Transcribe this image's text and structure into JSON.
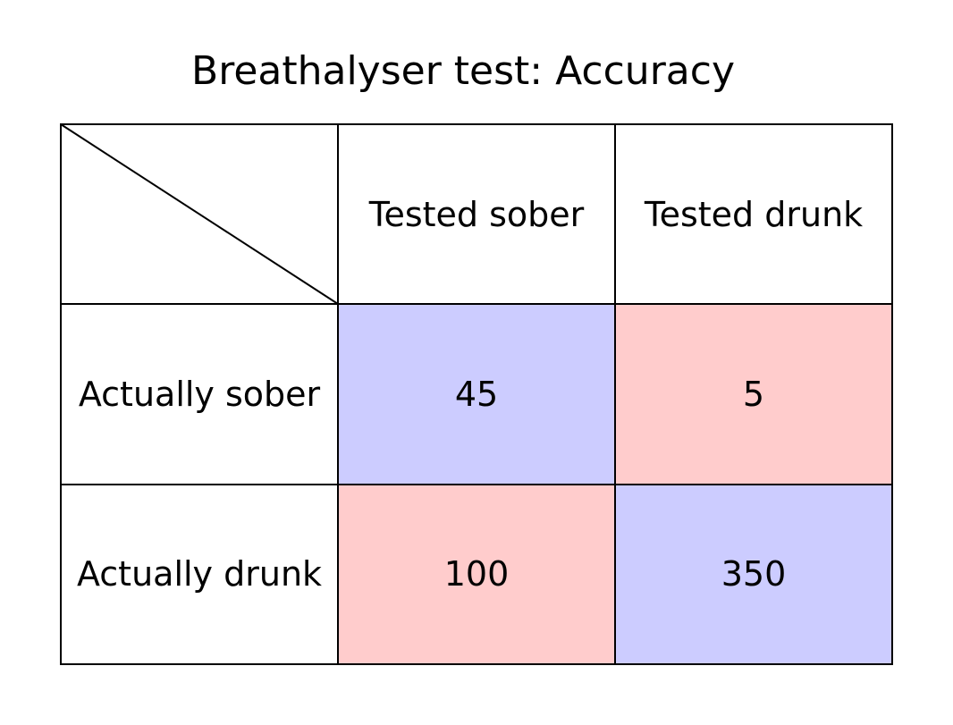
{
  "title": "Breathalyser test: Accuracy",
  "columns": [
    "Tested sober",
    "Tested drunk"
  ],
  "rows": [
    {
      "label": "Actually sober",
      "values": [
        "45",
        "5"
      ],
      "kinds": [
        "correct",
        "error"
      ]
    },
    {
      "label": "Actually drunk",
      "values": [
        "100",
        "350"
      ],
      "kinds": [
        "error",
        "correct"
      ]
    }
  ],
  "colors": {
    "correct": "#ccccff",
    "error": "#ffcccc",
    "border": "#000000",
    "background": "#ffffff"
  }
}
